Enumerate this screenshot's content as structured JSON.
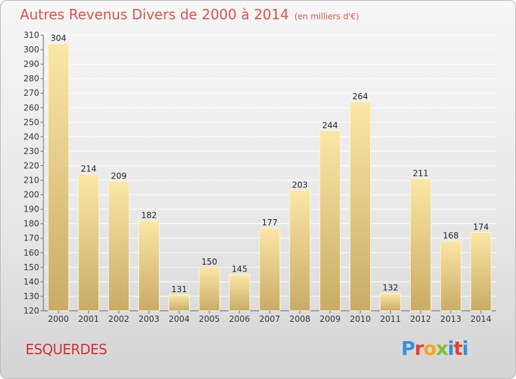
{
  "title": "Autres Revenus Divers de 2000 à 2014",
  "unit": "(en milliers d'€)",
  "commune": "ESQUERDES",
  "logo": "Proxiti",
  "colors": {
    "bar_top": "#fbe7a6",
    "bar_bottom": "#c9ab66",
    "grid": "#ffffff",
    "title": "#d9534f"
  },
  "chart_data": {
    "type": "bar",
    "categories": [
      "2000",
      "2001",
      "2002",
      "2003",
      "2004",
      "2005",
      "2006",
      "2007",
      "2008",
      "2009",
      "2010",
      "2011",
      "2012",
      "2013",
      "2014"
    ],
    "values": [
      304,
      214,
      209,
      182,
      131,
      150,
      145,
      177,
      203,
      244,
      264,
      132,
      211,
      168,
      174
    ],
    "ylim": [
      120,
      310
    ],
    "yticks": [
      120,
      130,
      140,
      150,
      160,
      170,
      180,
      190,
      200,
      210,
      220,
      230,
      240,
      250,
      260,
      270,
      280,
      290,
      300,
      310
    ],
    "grid": true,
    "xlabel": "",
    "ylabel": ""
  }
}
